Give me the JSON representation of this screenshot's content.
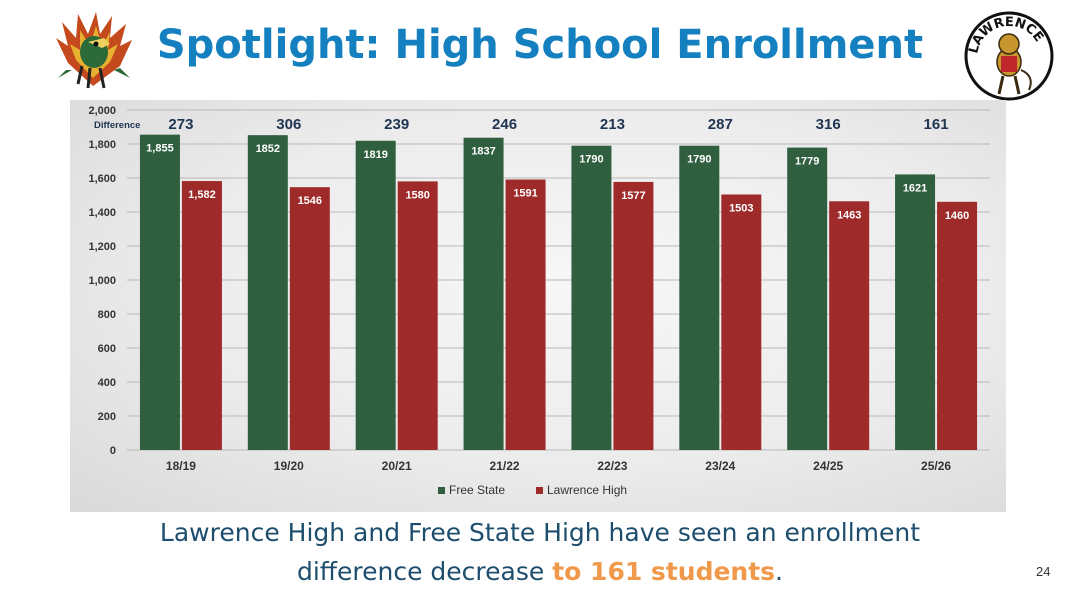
{
  "slide": {
    "title": "Spotlight: High School Enrollment",
    "caption_line1": "Lawrence High and Free State High have seen an enrollment",
    "caption_line2_prefix": "difference decrease ",
    "caption_highlight": "to 161 students",
    "caption_suffix": ".",
    "page_number": "24"
  },
  "colors": {
    "title": "#1480bf",
    "free_state": "#2f5f3f",
    "lawrence_high": "#9e2a2a",
    "highlight": "#f0994b",
    "caption": "#1e4e6e"
  },
  "chart_data": {
    "type": "bar",
    "title": "",
    "xlabel": "",
    "ylabel": "",
    "ylim": [
      0,
      2000
    ],
    "yticks": [
      0,
      200,
      400,
      600,
      800,
      1000,
      1200,
      1400,
      1600,
      1800,
      2000
    ],
    "ytick_labels": [
      "0",
      "200",
      "400",
      "600",
      "800",
      "1,000",
      "1,200",
      "1,400",
      "1,600",
      "1,800",
      "2,000"
    ],
    "grid": true,
    "legend_position": "bottom-center",
    "categories": [
      "18/19",
      "19/20",
      "20/21",
      "21/22",
      "22/23",
      "23/24",
      "24/25",
      "25/26"
    ],
    "series": [
      {
        "name": "Free State",
        "values": [
          1855,
          1852,
          1819,
          1837,
          1790,
          1790,
          1779,
          1621
        ],
        "labels": [
          "1,855",
          "1852",
          "1819",
          "1837",
          "1790",
          "1790",
          "1779",
          "1621"
        ]
      },
      {
        "name": "Lawrence High",
        "values": [
          1582,
          1546,
          1580,
          1591,
          1577,
          1503,
          1463,
          1460
        ],
        "labels": [
          "1,582",
          "1546",
          "1580",
          "1591",
          "1577",
          "1503",
          "1463",
          "1460"
        ]
      }
    ],
    "difference_label": "Difference",
    "differences": [
      "273",
      "306",
      "239",
      "246",
      "213",
      "287",
      "316",
      "161"
    ]
  },
  "icons": {
    "left_logo": "firebird-mascot-icon",
    "right_logo": "lawrence-lion-mascot-icon",
    "right_logo_text": "LAWRENCE"
  }
}
